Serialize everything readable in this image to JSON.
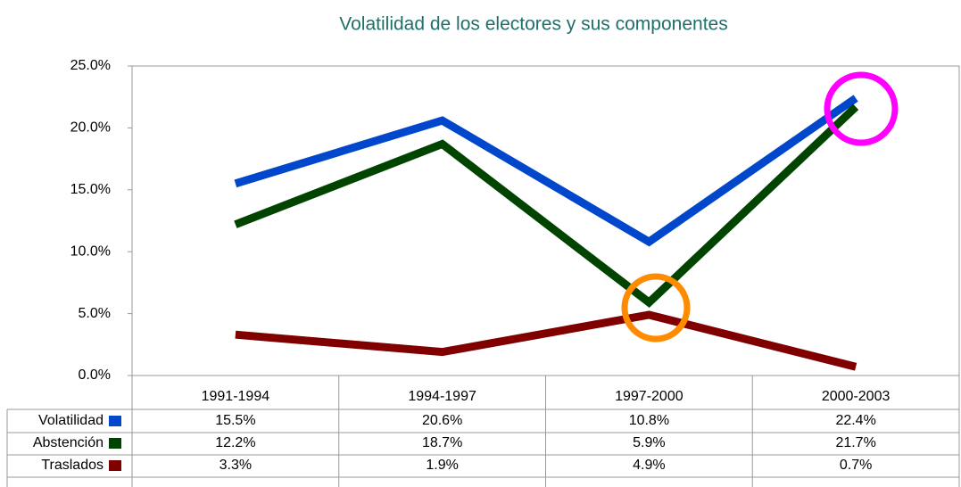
{
  "chart_data": {
    "type": "line",
    "title": "Volatilidad de los electores y sus componentes",
    "categories": [
      "1991-1994",
      "1994-1997",
      "1997-2000",
      "2000-2003"
    ],
    "series": [
      {
        "name": "Volatilidad",
        "color": "#0047cc",
        "values": [
          15.5,
          20.6,
          10.8,
          22.4
        ],
        "value_labels": [
          "15.5%",
          "20.6%",
          "10.8%",
          "22.4%"
        ]
      },
      {
        "name": "Abstención",
        "color": "#004400",
        "values": [
          12.2,
          18.7,
          5.9,
          21.7
        ],
        "value_labels": [
          "12.2%",
          "18.7%",
          "5.9%",
          "21.7%"
        ]
      },
      {
        "name": "Traslados",
        "color": "#800000",
        "values": [
          3.3,
          1.9,
          4.9,
          0.7
        ],
        "value_labels": [
          "3.3%",
          "1.9%",
          "4.9%",
          "0.7%"
        ]
      }
    ],
    "ylim": [
      0,
      25
    ],
    "yticks": [
      {
        "value": 0,
        "label": "0.0%"
      },
      {
        "value": 5,
        "label": "5.0%"
      },
      {
        "value": 10,
        "label": "10.0%"
      },
      {
        "value": 15,
        "label": "15.0%"
      },
      {
        "value": 20,
        "label": "20.0%"
      },
      {
        "value": 25,
        "label": "25.0%"
      }
    ],
    "grid": false
  }
}
